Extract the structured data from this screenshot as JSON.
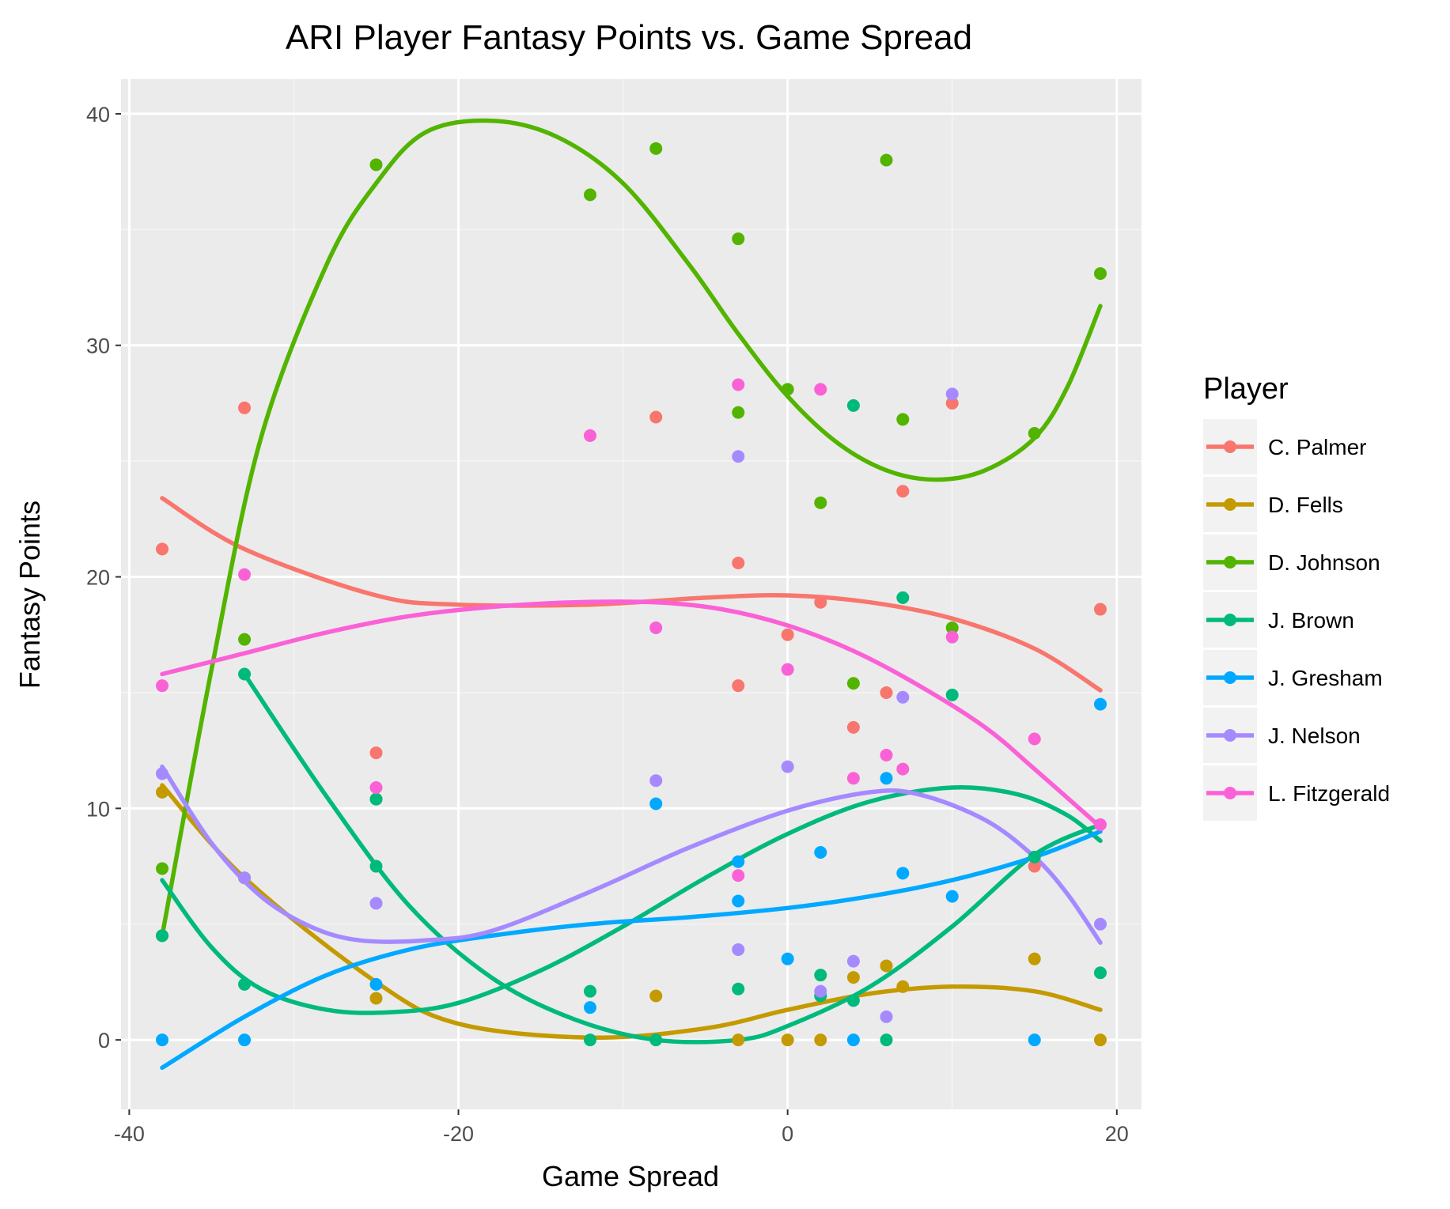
{
  "chart_data": {
    "type": "scatter",
    "title": "ARI Player Fantasy Points vs. Game Spread",
    "xlabel": "Game Spread",
    "ylabel": "Fantasy Points",
    "xlim": [
      -40.5,
      21.5
    ],
    "ylim": [
      -3,
      41.5
    ],
    "xticks": [
      -40,
      -20,
      0,
      20
    ],
    "yticks": [
      0,
      10,
      20,
      30,
      40
    ],
    "x_tick_labels": [
      "-40",
      "-20",
      "0",
      "20"
    ],
    "y_tick_labels": [
      "0",
      "10",
      "20",
      "30",
      "40"
    ],
    "grid": true,
    "legend_title": "Player",
    "legend_position": "right",
    "smoothing": "loess",
    "series": [
      {
        "name": "C. Palmer",
        "color": "#F8766D",
        "points": [
          [
            -38,
            21.2
          ],
          [
            -33,
            27.3
          ],
          [
            -25,
            12.4
          ],
          [
            -8,
            26.9
          ],
          [
            -3,
            20.6
          ],
          [
            -3,
            15.3
          ],
          [
            0,
            17.5
          ],
          [
            2,
            18.9
          ],
          [
            4,
            13.5
          ],
          [
            6,
            15.0
          ],
          [
            7,
            23.7
          ],
          [
            10,
            27.5
          ],
          [
            15,
            7.5
          ],
          [
            19,
            18.6
          ]
        ],
        "smooth": [
          [
            -38,
            23.4
          ],
          [
            -33,
            21.2
          ],
          [
            -25,
            19.2
          ],
          [
            -20,
            18.8
          ],
          [
            -12,
            18.8
          ],
          [
            -5,
            19.1
          ],
          [
            0,
            19.2
          ],
          [
            5,
            18.9
          ],
          [
            10,
            18.2
          ],
          [
            15,
            16.9
          ],
          [
            19,
            15.1
          ]
        ]
      },
      {
        "name": "D. Fells",
        "color": "#C49A00",
        "points": [
          [
            -38,
            10.7
          ],
          [
            -33,
            7.0
          ],
          [
            -25,
            1.8
          ],
          [
            -8,
            1.9
          ],
          [
            -3,
            0
          ],
          [
            0,
            0
          ],
          [
            2,
            0
          ],
          [
            4,
            2.7
          ],
          [
            6,
            3.2
          ],
          [
            7,
            2.3
          ],
          [
            15,
            3.5
          ],
          [
            19,
            0
          ]
        ],
        "smooth": [
          [
            -38,
            11.0
          ],
          [
            -33,
            7.0
          ],
          [
            -25,
            2.5
          ],
          [
            -20,
            0.7
          ],
          [
            -12,
            0.1
          ],
          [
            -5,
            0.5
          ],
          [
            0,
            1.3
          ],
          [
            5,
            2.0
          ],
          [
            10,
            2.3
          ],
          [
            15,
            2.1
          ],
          [
            19,
            1.3
          ]
        ]
      },
      {
        "name": "D. Johnson",
        "color": "#53B400",
        "points": [
          [
            -38,
            7.4
          ],
          [
            -38,
            4.5
          ],
          [
            -33,
            17.3
          ],
          [
            -25,
            37.8
          ],
          [
            -25,
            10.4
          ],
          [
            -12,
            36.5
          ],
          [
            -8,
            38.5
          ],
          [
            -3,
            34.6
          ],
          [
            -3,
            27.1
          ],
          [
            0,
            28.1
          ],
          [
            2,
            23.2
          ],
          [
            4,
            15.4
          ],
          [
            6,
            38.0
          ],
          [
            7,
            26.8
          ],
          [
            10,
            17.8
          ],
          [
            15,
            26.2
          ],
          [
            19,
            33.1
          ]
        ],
        "smooth": [
          [
            -38,
            4.5
          ],
          [
            -35,
            16.0
          ],
          [
            -32,
            26.0
          ],
          [
            -28,
            33.5
          ],
          [
            -25,
            37.0
          ],
          [
            -22,
            39.2
          ],
          [
            -18,
            39.7
          ],
          [
            -14,
            39.0
          ],
          [
            -10,
            37.0
          ],
          [
            -6,
            33.5
          ],
          [
            -3,
            30.5
          ],
          [
            0,
            27.8
          ],
          [
            3,
            25.8
          ],
          [
            6,
            24.6
          ],
          [
            9,
            24.2
          ],
          [
            12,
            24.6
          ],
          [
            15,
            26.0
          ],
          [
            17,
            28.2
          ],
          [
            19,
            31.7
          ]
        ]
      },
      {
        "name": "J. Brown",
        "color": "#00B97D",
        "points": [
          [
            -38,
            4.5
          ],
          [
            -33,
            15.8
          ],
          [
            -33,
            2.4
          ],
          [
            -25,
            7.5
          ],
          [
            -25,
            10.4
          ],
          [
            -12,
            2.1
          ],
          [
            -12,
            0
          ],
          [
            -8,
            0
          ],
          [
            -3,
            2.2
          ],
          [
            2,
            2.8
          ],
          [
            2,
            1.9
          ],
          [
            4,
            1.7
          ],
          [
            4,
            27.4
          ],
          [
            6,
            0
          ],
          [
            7,
            19.1
          ],
          [
            10,
            14.9
          ],
          [
            15,
            7.9
          ],
          [
            19,
            2.9
          ]
        ],
        "smooth_curves": [
          [
            [
              -38,
              6.9
            ],
            [
              -35,
              4.0
            ],
            [
              -32,
              2.2
            ],
            [
              -28,
              1.3
            ],
            [
              -24,
              1.2
            ],
            [
              -20,
              1.6
            ],
            [
              -15,
              3.0
            ],
            [
              -10,
              4.9
            ],
            [
              -5,
              7.0
            ],
            [
              0,
              8.9
            ],
            [
              5,
              10.3
            ],
            [
              10,
              10.9
            ],
            [
              14,
              10.6
            ],
            [
              17,
              9.7
            ],
            [
              19,
              8.6
            ]
          ],
          [
            [
              -33,
              15.8
            ],
            [
              -28,
              10.5
            ],
            [
              -23,
              5.8
            ],
            [
              -18,
              2.7
            ],
            [
              -13,
              0.9
            ],
            [
              -8,
              0.0
            ],
            [
              -3,
              0.0
            ],
            [
              0,
              0.6
            ],
            [
              5,
              2.3
            ],
            [
              10,
              4.9
            ],
            [
              15,
              8.0
            ],
            [
              19,
              9.3
            ]
          ]
        ]
      },
      {
        "name": "J. Gresham",
        "color": "#00A9FF",
        "points": [
          [
            -38,
            0
          ],
          [
            -33,
            0
          ],
          [
            -25,
            2.4
          ],
          [
            -12,
            1.4
          ],
          [
            -8,
            10.2
          ],
          [
            -3,
            7.7
          ],
          [
            -3,
            6.0
          ],
          [
            0,
            3.5
          ],
          [
            2,
            8.1
          ],
          [
            4,
            0
          ],
          [
            6,
            11.3
          ],
          [
            7,
            7.2
          ],
          [
            10,
            6.2
          ],
          [
            15,
            0
          ],
          [
            19,
            14.5
          ]
        ],
        "smooth": [
          [
            -38,
            -1.2
          ],
          [
            -33,
            1.0
          ],
          [
            -28,
            2.8
          ],
          [
            -23,
            3.9
          ],
          [
            -18,
            4.5
          ],
          [
            -12,
            5.0
          ],
          [
            -6,
            5.3
          ],
          [
            0,
            5.7
          ],
          [
            5,
            6.2
          ],
          [
            10,
            6.9
          ],
          [
            15,
            7.9
          ],
          [
            19,
            9.0
          ]
        ]
      },
      {
        "name": "J. Nelson",
        "color": "#A58AFF",
        "points": [
          [
            -38,
            11.5
          ],
          [
            -33,
            7.0
          ],
          [
            -25,
            5.9
          ],
          [
            -8,
            11.2
          ],
          [
            -3,
            25.2
          ],
          [
            -3,
            3.9
          ],
          [
            0,
            11.8
          ],
          [
            2,
            2.1
          ],
          [
            4,
            3.4
          ],
          [
            6,
            1.0
          ],
          [
            7,
            14.8
          ],
          [
            10,
            27.9
          ],
          [
            19,
            5.0
          ]
        ],
        "smooth": [
          [
            -38,
            11.8
          ],
          [
            -35,
            8.5
          ],
          [
            -32,
            6.2
          ],
          [
            -29,
            4.9
          ],
          [
            -26,
            4.3
          ],
          [
            -22,
            4.3
          ],
          [
            -18,
            4.7
          ],
          [
            -12,
            6.4
          ],
          [
            -6,
            8.3
          ],
          [
            0,
            9.9
          ],
          [
            5,
            10.7
          ],
          [
            8,
            10.6
          ],
          [
            12,
            9.5
          ],
          [
            15,
            7.9
          ],
          [
            17,
            6.3
          ],
          [
            19,
            4.2
          ]
        ]
      },
      {
        "name": "L. Fitzgerald",
        "color": "#FB61D7",
        "points": [
          [
            -38,
            15.3
          ],
          [
            -33,
            20.1
          ],
          [
            -25,
            10.9
          ],
          [
            -12,
            26.1
          ],
          [
            -8,
            17.8
          ],
          [
            -3,
            28.3
          ],
          [
            -3,
            7.1
          ],
          [
            0,
            16.0
          ],
          [
            2,
            28.1
          ],
          [
            4,
            11.3
          ],
          [
            6,
            12.3
          ],
          [
            7,
            11.7
          ],
          [
            10,
            17.4
          ],
          [
            15,
            13.0
          ],
          [
            19,
            9.3
          ]
        ],
        "smooth": [
          [
            -38,
            15.8
          ],
          [
            -33,
            16.7
          ],
          [
            -28,
            17.6
          ],
          [
            -23,
            18.3
          ],
          [
            -18,
            18.7
          ],
          [
            -13,
            18.9
          ],
          [
            -8,
            18.9
          ],
          [
            -4,
            18.6
          ],
          [
            0,
            17.9
          ],
          [
            4,
            16.8
          ],
          [
            8,
            15.3
          ],
          [
            12,
            13.5
          ],
          [
            15,
            11.7
          ],
          [
            19,
            9.2
          ]
        ]
      }
    ]
  }
}
